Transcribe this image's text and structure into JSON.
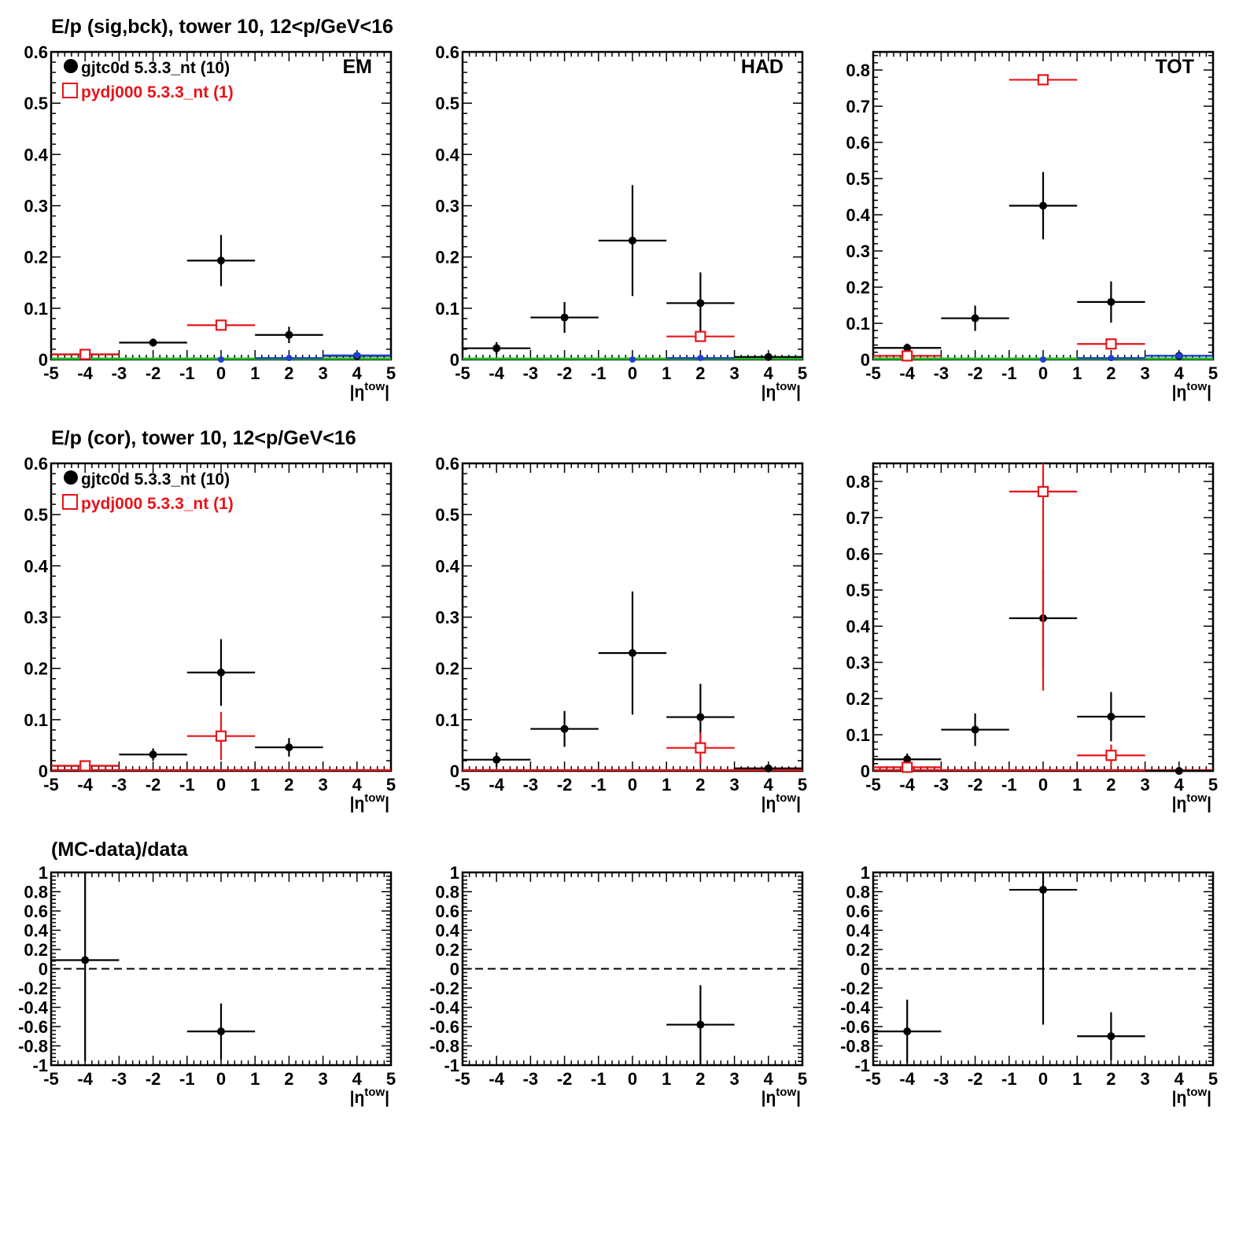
{
  "row_titles": [
    "E/p (sig,bck), tower 10, 12<p/GeV<16",
    "E/p (cor), tower 10, 12<p/GeV<16",
    "(MC-data)/data"
  ],
  "legend": [
    {
      "label": "gjtc0d 5.3.3_nt (10)",
      "color": "#000000",
      "marker": "filled-circle"
    },
    {
      "label": "pydj000 5.3.3_nt (1)",
      "color": "#e8141a",
      "marker": "open-square"
    }
  ],
  "colors": {
    "data": "#000000",
    "mc": "#e8141a",
    "blue": "#1f3fd6",
    "green": "#22bb22",
    "axis": "#000000"
  },
  "chart_data": [
    {
      "type": "scatter",
      "row": 0,
      "col": 0,
      "title": "E/p (sig,bck), tower 10, 12<p/GeV<16",
      "panel_label": "EM",
      "xlabel": "|η^tow|",
      "xlim": [
        -5,
        5
      ],
      "ylim": [
        0,
        0.6
      ],
      "xticks": [
        -5,
        -4,
        -3,
        -2,
        -1,
        0,
        1,
        2,
        3,
        4,
        5
      ],
      "yticks": [
        0,
        0.1,
        0.2,
        0.3,
        0.4,
        0.5,
        0.6
      ],
      "legend": true,
      "baseline": true,
      "series": [
        {
          "name": "gjtc0d 5.3.3_nt (10)",
          "style": "data",
          "points": [
            {
              "x": -4,
              "y": 0.01,
              "xerr": 1,
              "yerr": 0.003
            },
            {
              "x": -2,
              "y": 0.033,
              "xerr": 1,
              "yerr": 0.008
            },
            {
              "x": 0,
              "y": 0.193,
              "xerr": 1,
              "yerr": 0.05
            },
            {
              "x": 2,
              "y": 0.048,
              "xerr": 1,
              "yerr": 0.016
            },
            {
              "x": 4,
              "y": 0.007,
              "xerr": 1,
              "yerr": 0.003
            }
          ]
        },
        {
          "name": "pydj000 5.3.3_nt (1)",
          "style": "mc",
          "points": [
            {
              "x": -4,
              "y": 0.01,
              "xerr": 1,
              "yerr": 0
            },
            {
              "x": 0,
              "y": 0.067,
              "xerr": 1,
              "yerr": 0
            }
          ]
        },
        {
          "style": "blue",
          "points": [
            {
              "x": 0,
              "y": 0.0,
              "xerr": 0,
              "yerr": 0
            },
            {
              "x": 2,
              "y": 0.003,
              "xerr": 1,
              "yerr": 0
            },
            {
              "x": 4,
              "y": 0.008,
              "xerr": 1,
              "yerr": 0
            }
          ]
        }
      ]
    },
    {
      "type": "scatter",
      "row": 0,
      "col": 1,
      "panel_label": "HAD",
      "xlabel": "|η^tow|",
      "xlim": [
        -5,
        5
      ],
      "ylim": [
        0,
        0.6
      ],
      "xticks": [
        -5,
        -4,
        -3,
        -2,
        -1,
        0,
        1,
        2,
        3,
        4,
        5
      ],
      "yticks": [
        0,
        0.1,
        0.2,
        0.3,
        0.4,
        0.5,
        0.6
      ],
      "legend": false,
      "baseline": true,
      "series": [
        {
          "style": "data",
          "points": [
            {
              "x": -4,
              "y": 0.022,
              "xerr": 1,
              "yerr": 0.012
            },
            {
              "x": -2,
              "y": 0.082,
              "xerr": 1,
              "yerr": 0.03
            },
            {
              "x": 0,
              "y": 0.232,
              "xerr": 1,
              "yerr": 0.108
            },
            {
              "x": 2,
              "y": 0.11,
              "xerr": 1,
              "yerr": 0.06
            },
            {
              "x": 4,
              "y": 0.005,
              "xerr": 1,
              "yerr": 0.003
            }
          ]
        },
        {
          "style": "mc",
          "points": [
            {
              "x": 2,
              "y": 0.045,
              "xerr": 1,
              "yerr": 0
            }
          ]
        },
        {
          "style": "blue",
          "points": [
            {
              "x": 0,
              "y": 0.0,
              "xerr": 0,
              "yerr": 0
            },
            {
              "x": 2,
              "y": 0.003,
              "xerr": 1,
              "yerr": 0
            }
          ]
        }
      ]
    },
    {
      "type": "scatter",
      "row": 0,
      "col": 2,
      "panel_label": "TOT",
      "xlabel": "|η^tow|",
      "xlim": [
        -5,
        5
      ],
      "ylim": [
        0,
        0.85
      ],
      "xticks": [
        -5,
        -4,
        -3,
        -2,
        -1,
        0,
        1,
        2,
        3,
        4,
        5
      ],
      "yticks": [
        0,
        0.1,
        0.2,
        0.3,
        0.4,
        0.5,
        0.6,
        0.7,
        0.8
      ],
      "legend": false,
      "baseline": true,
      "series": [
        {
          "style": "data",
          "points": [
            {
              "x": -4,
              "y": 0.032,
              "xerr": 1,
              "yerr": 0.012
            },
            {
              "x": -2,
              "y": 0.114,
              "xerr": 1,
              "yerr": 0.035
            },
            {
              "x": 0,
              "y": 0.425,
              "xerr": 1,
              "yerr": 0.093
            },
            {
              "x": 2,
              "y": 0.159,
              "xerr": 1,
              "yerr": 0.057
            },
            {
              "x": 4,
              "y": 0.01,
              "xerr": 1,
              "yerr": 0.004
            }
          ]
        },
        {
          "style": "mc",
          "points": [
            {
              "x": -4,
              "y": 0.01,
              "xerr": 1,
              "yerr": 0
            },
            {
              "x": 0,
              "y": 0.773,
              "xerr": 1,
              "yerr": 0
            },
            {
              "x": 2,
              "y": 0.043,
              "xerr": 1,
              "yerr": 0
            }
          ]
        },
        {
          "style": "blue",
          "points": [
            {
              "x": 0,
              "y": 0.0,
              "xerr": 0,
              "yerr": 0
            },
            {
              "x": 2,
              "y": 0.004,
              "xerr": 1,
              "yerr": 0
            },
            {
              "x": 4,
              "y": 0.01,
              "xerr": 1,
              "yerr": 0
            }
          ]
        }
      ]
    },
    {
      "type": "scatter",
      "row": 1,
      "col": 0,
      "title": "E/p (cor), tower 10, 12<p/GeV<16",
      "xlabel": "|η^tow|",
      "xlim": [
        -5,
        5
      ],
      "ylim": [
        0,
        0.6
      ],
      "xticks": [
        -5,
        -4,
        -3,
        -2,
        -1,
        0,
        1,
        2,
        3,
        4,
        5
      ],
      "yticks": [
        0,
        0.1,
        0.2,
        0.3,
        0.4,
        0.5,
        0.6
      ],
      "legend": true,
      "baseline": false,
      "series": [
        {
          "name": "gjtc0d 5.3.3_nt (10)",
          "style": "data",
          "points": [
            {
              "x": -4,
              "y": 0.01,
              "xerr": 1,
              "yerr": 0.003
            },
            {
              "x": -2,
              "y": 0.032,
              "xerr": 1,
              "yerr": 0.012
            },
            {
              "x": 0,
              "y": 0.192,
              "xerr": 1,
              "yerr": 0.065
            },
            {
              "x": 2,
              "y": 0.046,
              "xerr": 1,
              "yerr": 0.018
            }
          ]
        },
        {
          "name": "pydj000 5.3.3_nt (1)",
          "style": "mc",
          "points": [
            {
              "x": -4,
              "y": 0.01,
              "xerr": 1,
              "yerr": 0
            },
            {
              "x": 0,
              "y": 0.068,
              "xerr": 1,
              "yerr": 0.047
            }
          ]
        }
      ]
    },
    {
      "type": "scatter",
      "row": 1,
      "col": 1,
      "xlabel": "|η^tow|",
      "xlim": [
        -5,
        5
      ],
      "ylim": [
        0,
        0.6
      ],
      "xticks": [
        -5,
        -4,
        -3,
        -2,
        -1,
        0,
        1,
        2,
        3,
        4,
        5
      ],
      "yticks": [
        0,
        0.1,
        0.2,
        0.3,
        0.4,
        0.5,
        0.6
      ],
      "legend": false,
      "baseline": false,
      "series": [
        {
          "style": "data",
          "points": [
            {
              "x": -4,
              "y": 0.022,
              "xerr": 1,
              "yerr": 0.014
            },
            {
              "x": -2,
              "y": 0.082,
              "xerr": 1,
              "yerr": 0.035
            },
            {
              "x": 0,
              "y": 0.23,
              "xerr": 1,
              "yerr": 0.12
            },
            {
              "x": 2,
              "y": 0.105,
              "xerr": 1,
              "yerr": 0.065
            },
            {
              "x": 4,
              "y": 0.005,
              "xerr": 1,
              "yerr": 0.005
            }
          ]
        },
        {
          "style": "mc",
          "points": [
            {
              "x": 2,
              "y": 0.045,
              "xerr": 1,
              "yerr": 0.03
            }
          ]
        }
      ]
    },
    {
      "type": "scatter",
      "row": 1,
      "col": 2,
      "xlabel": "|η^tow|",
      "xlim": [
        -5,
        5
      ],
      "ylim": [
        0,
        0.85
      ],
      "xticks": [
        -5,
        -4,
        -3,
        -2,
        -1,
        0,
        1,
        2,
        3,
        4,
        5
      ],
      "yticks": [
        0,
        0.1,
        0.2,
        0.3,
        0.4,
        0.5,
        0.6,
        0.7,
        0.8
      ],
      "legend": false,
      "baseline": false,
      "series": [
        {
          "style": "data",
          "points": [
            {
              "x": -4,
              "y": 0.032,
              "xerr": 1,
              "yerr": 0.016
            },
            {
              "x": -2,
              "y": 0.114,
              "xerr": 1,
              "yerr": 0.045
            },
            {
              "x": 0,
              "y": 0.422,
              "xerr": 1,
              "yerr": 0.135
            },
            {
              "x": 2,
              "y": 0.15,
              "xerr": 1,
              "yerr": 0.068
            },
            {
              "x": 4,
              "y": 0.0,
              "xerr": 1,
              "yerr": 0
            }
          ]
        },
        {
          "style": "mc",
          "points": [
            {
              "x": -4,
              "y": 0.01,
              "xerr": 1,
              "yerr": 0
            },
            {
              "x": 0,
              "y": 0.772,
              "xerr": 1,
              "yerr": 0.55
            },
            {
              "x": 2,
              "y": 0.043,
              "xerr": 1,
              "yerr": 0.03
            }
          ]
        }
      ]
    },
    {
      "type": "scatter",
      "row": 2,
      "col": 0,
      "title": "(MC-data)/data",
      "xlabel": "|η^tow|",
      "xlim": [
        -5,
        5
      ],
      "ylim": [
        -1,
        1
      ],
      "xticks": [
        -5,
        -4,
        -3,
        -2,
        -1,
        0,
        1,
        2,
        3,
        4,
        5
      ],
      "yticks": [
        -1,
        -0.8,
        -0.6,
        -0.4,
        -0.2,
        0,
        0.2,
        0.4,
        0.6,
        0.8,
        1
      ],
      "legend": false,
      "zero_line": true,
      "series": [
        {
          "style": "data",
          "points": [
            {
              "x": -4,
              "y": 0.09,
              "xerr": 1,
              "yerr": 1.05
            },
            {
              "x": 0,
              "y": -0.65,
              "xerr": 1,
              "yerr": 0.29
            }
          ]
        }
      ]
    },
    {
      "type": "scatter",
      "row": 2,
      "col": 1,
      "xlabel": "|η^tow|",
      "xlim": [
        -5,
        5
      ],
      "ylim": [
        -1,
        1
      ],
      "xticks": [
        -5,
        -4,
        -3,
        -2,
        -1,
        0,
        1,
        2,
        3,
        4,
        5
      ],
      "yticks": [
        -1,
        -0.8,
        -0.6,
        -0.4,
        -0.2,
        0,
        0.2,
        0.4,
        0.6,
        0.8,
        1
      ],
      "legend": false,
      "zero_line": true,
      "series": [
        {
          "style": "data",
          "points": [
            {
              "x": 2,
              "y": -0.58,
              "xerr": 1,
              "yerr": 0.41
            }
          ]
        }
      ]
    },
    {
      "type": "scatter",
      "row": 2,
      "col": 2,
      "xlabel": "|η^tow|",
      "xlim": [
        -5,
        5
      ],
      "ylim": [
        -1,
        1
      ],
      "xticks": [
        -5,
        -4,
        -3,
        -2,
        -1,
        0,
        1,
        2,
        3,
        4,
        5
      ],
      "yticks": [
        -1,
        -0.8,
        -0.6,
        -0.4,
        -0.2,
        0,
        0.2,
        0.4,
        0.6,
        0.8,
        1
      ],
      "legend": false,
      "zero_line": true,
      "series": [
        {
          "style": "data",
          "points": [
            {
              "x": -4,
              "y": -0.65,
              "xerr": 1,
              "yerr": 0.33
            },
            {
              "x": 0,
              "y": 0.82,
              "xerr": 1,
              "yerr": 1.4
            },
            {
              "x": 2,
              "y": -0.7,
              "xerr": 1,
              "yerr": 0.25
            }
          ]
        }
      ]
    }
  ]
}
